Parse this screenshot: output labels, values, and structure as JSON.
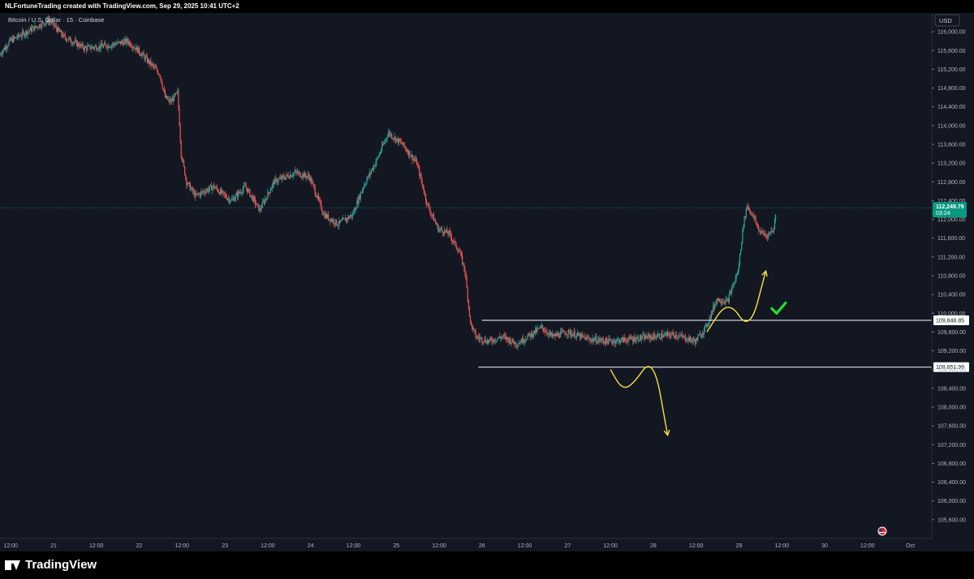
{
  "header": {
    "attribution": "NLFortuneTrading created with TradingView.com, Sep 29, 2025 10:41 UTC+2"
  },
  "footer": {
    "brand": "TradingView"
  },
  "chart_data": {
    "type": "candlestick",
    "title": "Bitcoin / U.S. Dollar · 15 · Coinbase",
    "currency": "USD",
    "ylim": [
      105200,
      116400
    ],
    "yticks": [
      105600,
      106000,
      106400,
      106800,
      107200,
      107600,
      108000,
      108400,
      108800,
      109200,
      109600,
      110000,
      110400,
      110800,
      111200,
      111600,
      112000,
      112400,
      112800,
      113200,
      113600,
      114000,
      114400,
      114800,
      115200,
      115600,
      116000
    ],
    "ytick_labels": [
      "105,600.00",
      "106,000.00",
      "106,400.00",
      "106,800.00",
      "107,200.00",
      "107,600.00",
      "108,000.00",
      "108,400.00",
      "108,800.00",
      "109,200.00",
      "109,600.00",
      "110,000.00",
      "110,400.00",
      "110,800.00",
      "111,200.00",
      "111,600.00",
      "112,000.00",
      "112,400.00",
      "112,800.00",
      "113,200.00",
      "113,600.00",
      "114,000.00",
      "114,400.00",
      "114,800.00",
      "115,200.00",
      "115,600.00",
      "116,000.00"
    ],
    "x_range": [
      "2025-09-20T09:00",
      "2025-10-01T06:00"
    ],
    "xticks": [
      {
        "t": "2025-09-20T12:00",
        "label": "12:00"
      },
      {
        "t": "2025-09-21T00:00",
        "label": "21"
      },
      {
        "t": "2025-09-21T12:00",
        "label": "12:00"
      },
      {
        "t": "2025-09-22T00:00",
        "label": "22"
      },
      {
        "t": "2025-09-22T12:00",
        "label": "12:00"
      },
      {
        "t": "2025-09-23T00:00",
        "label": "23"
      },
      {
        "t": "2025-09-23T12:00",
        "label": "12:00"
      },
      {
        "t": "2025-09-24T00:00",
        "label": "24"
      },
      {
        "t": "2025-09-24T12:00",
        "label": "12:00"
      },
      {
        "t": "2025-09-25T00:00",
        "label": "25"
      },
      {
        "t": "2025-09-25T12:00",
        "label": "12:00"
      },
      {
        "t": "2025-09-26T00:00",
        "label": "26"
      },
      {
        "t": "2025-09-26T12:00",
        "label": "12:00"
      },
      {
        "t": "2025-09-27T00:00",
        "label": "27"
      },
      {
        "t": "2025-09-27T12:00",
        "label": "12:00"
      },
      {
        "t": "2025-09-28T00:00",
        "label": "28"
      },
      {
        "t": "2025-09-28T12:00",
        "label": "12:00"
      },
      {
        "t": "2025-09-29T00:00",
        "label": "29"
      },
      {
        "t": "2025-09-29T12:00",
        "label": "12:00"
      },
      {
        "t": "2025-09-30T00:00",
        "label": "30"
      },
      {
        "t": "2025-09-30T12:00",
        "label": "12:00"
      },
      {
        "t": "2025-10-01T00:00",
        "label": "Oct"
      }
    ],
    "price_path": [
      [
        "2025-09-20T09:00",
        115500
      ],
      [
        "2025-09-20T12:00",
        115800
      ],
      [
        "2025-09-20T18:00",
        116050
      ],
      [
        "2025-09-20T23:00",
        116250
      ],
      [
        "2025-09-21T03:00",
        115900
      ],
      [
        "2025-09-21T09:00",
        115650
      ],
      [
        "2025-09-21T15:00",
        115700
      ],
      [
        "2025-09-21T21:00",
        115800
      ],
      [
        "2025-09-22T00:00",
        115600
      ],
      [
        "2025-09-22T03:00",
        115350
      ],
      [
        "2025-09-22T06:00",
        115100
      ],
      [
        "2025-09-22T07:30",
        114600
      ],
      [
        "2025-09-22T09:00",
        114500
      ],
      [
        "2025-09-22T11:00",
        114700
      ],
      [
        "2025-09-22T12:00",
        113400
      ],
      [
        "2025-09-22T13:30",
        112800
      ],
      [
        "2025-09-22T16:00",
        112500
      ],
      [
        "2025-09-22T21:00",
        112700
      ],
      [
        "2025-09-23T02:00",
        112400
      ],
      [
        "2025-09-23T06:00",
        112700
      ],
      [
        "2025-09-23T10:00",
        112200
      ],
      [
        "2025-09-23T14:00",
        112800
      ],
      [
        "2025-09-23T20:00",
        113000
      ],
      [
        "2025-09-24T00:00",
        112900
      ],
      [
        "2025-09-24T04:00",
        112100
      ],
      [
        "2025-09-24T08:00",
        111900
      ],
      [
        "2025-09-24T12:00",
        112100
      ],
      [
        "2025-09-24T15:00",
        112700
      ],
      [
        "2025-09-24T19:00",
        113300
      ],
      [
        "2025-09-24T22:00",
        113850
      ],
      [
        "2025-09-25T02:00",
        113600
      ],
      [
        "2025-09-25T06:00",
        113200
      ],
      [
        "2025-09-25T09:00",
        112300
      ],
      [
        "2025-09-25T12:00",
        111800
      ],
      [
        "2025-09-25T15:00",
        111700
      ],
      [
        "2025-09-25T18:00",
        111300
      ],
      [
        "2025-09-25T19:30",
        110900
      ],
      [
        "2025-09-25T21:00",
        109800
      ],
      [
        "2025-09-25T22:30",
        109500
      ],
      [
        "2025-09-26T02:00",
        109400
      ],
      [
        "2025-09-26T06:00",
        109500
      ],
      [
        "2025-09-26T10:00",
        109350
      ],
      [
        "2025-09-26T14:00",
        109550
      ],
      [
        "2025-09-26T17:00",
        109700
      ],
      [
        "2025-09-26T20:00",
        109500
      ],
      [
        "2025-09-27T00:00",
        109600
      ],
      [
        "2025-09-27T06:00",
        109450
      ],
      [
        "2025-09-27T12:00",
        109400
      ],
      [
        "2025-09-27T18:00",
        109450
      ],
      [
        "2025-09-28T00:00",
        109500
      ],
      [
        "2025-09-28T06:00",
        109550
      ],
      [
        "2025-09-28T12:00",
        109400
      ],
      [
        "2025-09-28T15:00",
        109700
      ],
      [
        "2025-09-28T18:00",
        110300
      ],
      [
        "2025-09-28T21:00",
        110250
      ],
      [
        "2025-09-29T00:00",
        110900
      ],
      [
        "2025-09-29T01:30",
        111900
      ],
      [
        "2025-09-29T02:30",
        112300
      ],
      [
        "2025-09-29T04:00",
        112100
      ],
      [
        "2025-09-29T06:00",
        111750
      ],
      [
        "2025-09-29T08:00",
        111650
      ],
      [
        "2025-09-29T10:00",
        111800
      ],
      [
        "2025-09-29T10:41",
        112249.79
      ]
    ],
    "horizontal_levels": [
      {
        "price": 109848.85,
        "label": "109,848.85",
        "from": "2025-09-26T00:00"
      },
      {
        "price": 108851.99,
        "label": "108,851.99",
        "from": "2025-09-25T23:00"
      }
    ],
    "last_price": {
      "price": 112249.79,
      "label": "112,249.79",
      "countdown": "03:24",
      "color": "#089981"
    },
    "annotations": [
      {
        "type": "scenario-arrow",
        "color": "#f5e24a",
        "path": [
          [
            "2025-09-27T12:00",
            108800
          ],
          [
            "2025-09-27T15:00",
            108400
          ],
          [
            "2025-09-27T18:00",
            108450
          ],
          [
            "2025-09-28T00:00",
            109100
          ],
          [
            "2025-09-28T04:00",
            107400
          ]
        ]
      },
      {
        "type": "scenario-arrow",
        "color": "#f5e24a",
        "path": [
          [
            "2025-09-28T15:00",
            109600
          ],
          [
            "2025-09-28T21:00",
            110300
          ],
          [
            "2025-09-29T03:00",
            109600
          ],
          [
            "2025-09-29T07:30",
            110900
          ]
        ]
      },
      {
        "type": "checkmark",
        "color": "#22e02a",
        "at": [
          "2025-09-29T11:00",
          110100
        ]
      }
    ],
    "colors": {
      "background": "#131722",
      "up": "#26a69a",
      "down": "#ef5350",
      "level_line": "#ffffff",
      "grid": "#1c2030"
    },
    "grid": false,
    "legend": "none"
  }
}
